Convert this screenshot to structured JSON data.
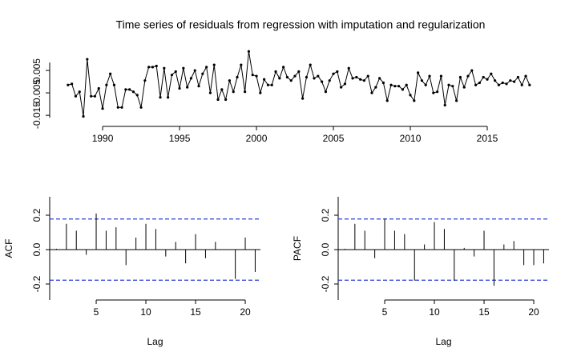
{
  "chart_data": [
    {
      "type": "line",
      "title": "Time series of residuals from regression with imputation and regularization",
      "color": "#000000",
      "x": [
        1987.75,
        1988,
        1988.25,
        1988.5,
        1988.75,
        1989,
        1989.25,
        1989.5,
        1989.75,
        1990,
        1990.25,
        1990.5,
        1990.75,
        1991,
        1991.25,
        1991.5,
        1991.75,
        1992,
        1992.25,
        1992.5,
        1992.75,
        1993,
        1993.25,
        1993.5,
        1993.75,
        1994,
        1994.25,
        1994.5,
        1994.75,
        1995,
        1995.25,
        1995.5,
        1995.75,
        1996,
        1996.25,
        1996.5,
        1996.75,
        1997,
        1997.25,
        1997.5,
        1997.75,
        1998,
        1998.25,
        1998.5,
        1998.75,
        1999,
        1999.25,
        1999.5,
        1999.75,
        2000,
        2000.25,
        2000.5,
        2000.75,
        2001,
        2001.25,
        2001.5,
        2001.75,
        2002,
        2002.25,
        2002.5,
        2002.75,
        2003,
        2003.25,
        2003.5,
        2003.75,
        2004,
        2004.25,
        2004.5,
        2004.75,
        2005,
        2005.25,
        2005.5,
        2005.75,
        2006,
        2006.25,
        2006.5,
        2006.75,
        2007,
        2007.25,
        2007.5,
        2007.75,
        2008,
        2008.25,
        2008.5,
        2008.75,
        2009,
        2009.25,
        2009.5,
        2009.75,
        2010,
        2010.25,
        2010.5,
        2010.75,
        2011,
        2011.25,
        2011.5,
        2011.75,
        2012,
        2012.25,
        2012.5,
        2012.75,
        2013,
        2013.25,
        2013.5,
        2013.75,
        2014,
        2014.25,
        2014.5,
        2014.75,
        2015,
        2015.25,
        2015.5,
        2015.75,
        2016,
        2016.25,
        2016.5,
        2016.75,
        2017,
        2017.25,
        2017.5,
        2017.75
      ],
      "values": [
        -0.0015,
        -0.001,
        -0.0065,
        -0.0045,
        -0.0155,
        0.01,
        -0.0065,
        -0.0065,
        -0.003,
        -0.012,
        -0.0015,
        0.0035,
        -0.0015,
        -0.0115,
        -0.0115,
        -0.0035,
        -0.0035,
        -0.0045,
        -0.006,
        -0.0115,
        0.0005,
        0.0065,
        0.0065,
        0.007,
        -0.007,
        0.006,
        -0.007,
        0.003,
        0.0045,
        -0.003,
        0.006,
        -0.0025,
        0.0015,
        0.005,
        -0.002,
        0.0035,
        0.0065,
        -0.005,
        0.0075,
        -0.008,
        -0.0035,
        -0.008,
        0.0005,
        -0.0045,
        0.002,
        0.0075,
        -0.0045,
        0.0135,
        0.003,
        0.0025,
        -0.005,
        0.001,
        -0.0015,
        -0.0015,
        0.0045,
        0.0015,
        0.0065,
        0.002,
        0.0005,
        0.0025,
        0.0045,
        -0.0075,
        0.002,
        0.0075,
        0.0015,
        0.0025,
        0.0,
        -0.0045,
        0.0005,
        0.0035,
        0.0045,
        -0.0025,
        -0.001,
        0.006,
        0.0015,
        0.002,
        0.001,
        0.0005,
        0.0025,
        -0.005,
        -0.0025,
        0.0015,
        -0.0005,
        -0.0085,
        -0.0015,
        -0.002,
        -0.002,
        -0.0035,
        -0.0015,
        -0.006,
        -0.0085,
        0.004,
        0.0005,
        -0.0015,
        0.0025,
        -0.005,
        -0.0045,
        0.0025,
        -0.0105,
        -0.0015,
        -0.002,
        -0.0085,
        0.002,
        -0.0025,
        0.0025,
        0.005,
        -0.0015,
        -0.0005,
        0.002,
        0.001,
        0.0035,
        0.0005,
        -0.0015,
        -0.0005,
        -0.001,
        0.0005,
        0.0,
        0.002,
        -0.0015,
        0.0025,
        -0.0015
      ],
      "xlim": [
        1986.56,
        2019.27
      ],
      "ylim": [
        -0.0171,
        0.0143
      ],
      "xticks": [
        1990,
        1995,
        2000,
        2005,
        2010,
        2015
      ],
      "yticks": [
        0.005,
        -0.005,
        -0.015
      ]
    },
    {
      "type": "bar",
      "y_label": "ACF",
      "x_label": "Lag",
      "color": "#000000",
      "x": [
        1,
        2,
        3,
        4,
        5,
        6,
        7,
        8,
        9,
        10,
        11,
        12,
        13,
        14,
        15,
        16,
        17,
        18,
        19,
        20,
        21
      ],
      "values": [
        0.005,
        0.15,
        0.11,
        -0.03,
        0.21,
        0.11,
        0.13,
        -0.09,
        0.07,
        0.15,
        0.12,
        -0.04,
        0.045,
        -0.08,
        0.09,
        -0.05,
        0.045,
        0.002,
        -0.17,
        0.07,
        -0.13
      ],
      "hlines": [
        0.178,
        -0.178
      ],
      "hline_color": "#2b3bd6",
      "xlim": [
        0.32,
        21.53
      ],
      "ylim": [
        -0.293,
        0.307
      ],
      "xticks": [
        5,
        10,
        15,
        20
      ],
      "yticks": [
        {
          "value": 0.2,
          "label": "0.2"
        },
        {
          "value": 0,
          "label": "0.0"
        },
        {
          "value": -0.2,
          "label": "-0.2"
        }
      ]
    },
    {
      "type": "bar",
      "y_label": "PACF",
      "x_label": "Lag",
      "color": "#000000",
      "x": [
        1,
        2,
        3,
        4,
        5,
        6,
        7,
        8,
        9,
        10,
        11,
        12,
        13,
        14,
        15,
        16,
        17,
        18,
        19,
        20,
        21
      ],
      "values": [
        0.005,
        0.15,
        0.11,
        -0.05,
        0.18,
        0.11,
        0.09,
        -0.18,
        0.03,
        0.16,
        0.12,
        -0.18,
        0.01,
        -0.04,
        0.11,
        -0.21,
        0.03,
        0.05,
        -0.09,
        -0.09,
        -0.08
      ],
      "hlines": [
        0.178,
        -0.178
      ],
      "hline_color": "#2b3bd6",
      "xlim": [
        0.32,
        21.53
      ],
      "ylim": [
        -0.293,
        0.307
      ],
      "xticks": [
        5,
        10,
        15,
        20
      ],
      "yticks": [
        {
          "value": 0.2,
          "label": "0.2"
        },
        {
          "value": 0,
          "label": "0.0"
        },
        {
          "value": -0.2,
          "label": "-0.2"
        }
      ]
    }
  ]
}
